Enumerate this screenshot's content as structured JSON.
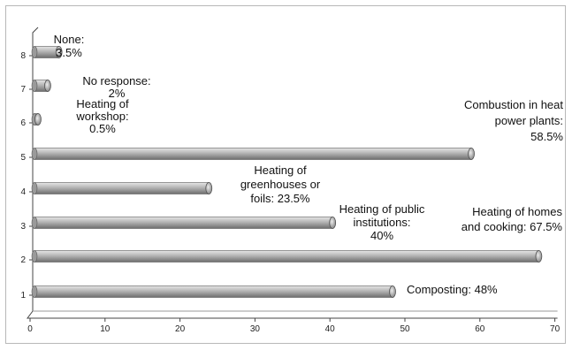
{
  "chart_data": {
    "type": "bar",
    "orientation": "horizontal",
    "categories": [
      "1",
      "2",
      "3",
      "4",
      "5",
      "6",
      "7",
      "8"
    ],
    "values": [
      48,
      67.5,
      40,
      23.5,
      58.5,
      0.5,
      2,
      3.5
    ],
    "data_labels": [
      [
        "Composting: 48%"
      ],
      [
        "Heating of homes",
        "and cooking: 67.5%"
      ],
      [
        "Heating of public",
        "institutions:",
        "40%"
      ],
      [
        "Heating of",
        "greenhouses  or",
        "foils: 23.5%"
      ],
      [
        "Combustion in heat",
        "power plants:",
        "58.5%"
      ],
      [
        "Heating of",
        "workshop:",
        "0.5%"
      ],
      [
        "No response:",
        "2%"
      ],
      [
        "None:",
        "3.5%"
      ]
    ],
    "x_ticks": [
      "0",
      "10",
      "20",
      "30",
      "40",
      "50",
      "60",
      "70"
    ],
    "xlim": [
      0,
      70
    ],
    "title": "",
    "xlabel": "",
    "ylabel": "",
    "grid": false,
    "bar_color": "#a9a9a9"
  }
}
